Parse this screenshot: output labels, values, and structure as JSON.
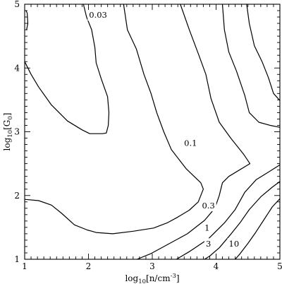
{
  "chart_data": {
    "type": "contour",
    "xlabel": "log10[n/cm^-3]",
    "xlabel_parts": {
      "pre": "log",
      "sub": "10",
      "mid": "[n/cm",
      "sup": "-3",
      "post": "]"
    },
    "ylabel": "log10[G0]",
    "ylabel_parts": {
      "pre": "log",
      "sub": "10",
      "mid": "[G",
      "sub2": "0",
      "post": "]"
    },
    "xlim": [
      1,
      5
    ],
    "ylim": [
      1,
      5
    ],
    "xticks": [
      1,
      2,
      3,
      4,
      5
    ],
    "xtick_labels": [
      "1",
      "2",
      "3",
      "4",
      "5"
    ],
    "yticks": [
      1,
      2,
      3,
      4,
      5
    ],
    "ytick_labels": [
      "1",
      "2",
      "3",
      "4",
      "5"
    ],
    "grid": false,
    "contours": [
      {
        "level": "0.03",
        "label_pos": [
          2.15,
          4.82
        ],
        "paths": [
          [
            [
              1.03,
              4.6
            ],
            [
              1.05,
              4.7
            ],
            [
              1.04,
              4.86
            ],
            [
              1.02,
              4.9
            ]
          ],
          [
            [
              1.0,
              4.1
            ],
            [
              1.1,
              3.9
            ],
            [
              1.22,
              3.7
            ],
            [
              1.42,
              3.42
            ],
            [
              1.67,
              3.17
            ],
            [
              1.9,
              3.03
            ],
            [
              2.02,
              2.97
            ],
            [
              2.22,
              2.97
            ],
            [
              2.28,
              2.98
            ],
            [
              2.31,
              3.1
            ],
            [
              2.32,
              3.3
            ],
            [
              2.3,
              3.55
            ],
            [
              2.2,
              3.83
            ],
            [
              2.12,
              4.08
            ],
            [
              2.1,
              4.32
            ],
            [
              2.05,
              4.6
            ],
            [
              1.97,
              4.8
            ],
            [
              1.92,
              5.0
            ]
          ]
        ]
      },
      {
        "level": "0.1",
        "label_pos": [
          3.6,
          2.81
        ],
        "paths": [
          [
            [
              1.0,
              1.94
            ],
            [
              1.22,
              1.92
            ],
            [
              1.42,
              1.85
            ],
            [
              1.58,
              1.72
            ],
            [
              1.78,
              1.54
            ],
            [
              1.98,
              1.46
            ],
            [
              2.12,
              1.42
            ],
            [
              2.38,
              1.4
            ],
            [
              2.7,
              1.44
            ],
            [
              3.02,
              1.49
            ],
            [
              3.23,
              1.57
            ],
            [
              3.38,
              1.65
            ],
            [
              3.58,
              1.77
            ],
            [
              3.72,
              1.9
            ],
            [
              3.8,
              2.1
            ],
            [
              3.76,
              2.2
            ],
            [
              3.53,
              2.42
            ],
            [
              3.3,
              2.72
            ],
            [
              3.18,
              3.0
            ],
            [
              3.07,
              3.3
            ],
            [
              2.98,
              3.6
            ],
            [
              2.87,
              3.9
            ],
            [
              2.75,
              4.3
            ],
            [
              2.61,
              4.6
            ],
            [
              2.55,
              5.0
            ]
          ]
        ]
      },
      {
        "level": "0.3",
        "label_pos": [
          3.88,
          1.83
        ],
        "paths": [
          [
            [
              3.44,
              5.0
            ],
            [
              3.58,
              4.6
            ],
            [
              3.73,
              4.2
            ],
            [
              3.84,
              3.9
            ],
            [
              3.92,
              3.52
            ],
            [
              4.05,
              3.15
            ],
            [
              4.23,
              2.9
            ],
            [
              4.43,
              2.65
            ],
            [
              4.53,
              2.5
            ],
            [
              4.2,
              2.3
            ],
            [
              4.1,
              2.2
            ],
            [
              4.05,
              2.0
            ],
            [
              3.98,
              1.8
            ],
            [
              3.82,
              1.61
            ],
            [
              3.55,
              1.4
            ],
            [
              3.22,
              1.22
            ],
            [
              2.98,
              1.09
            ],
            [
              2.76,
              1.0
            ]
          ]
        ]
      },
      {
        "level": "1",
        "label_pos": [
          3.86,
          1.48
        ],
        "paths": [
          [
            [
              4.1,
              5.0
            ],
            [
              4.13,
              4.6
            ],
            [
              4.2,
              4.25
            ],
            [
              4.32,
              3.95
            ],
            [
              4.45,
              3.57
            ],
            [
              4.52,
              3.3
            ],
            [
              4.67,
              3.15
            ],
            [
              4.85,
              3.1
            ],
            [
              5.0,
              3.07
            ]
          ],
          [
            [
              5.0,
              2.48
            ],
            [
              4.76,
              2.33
            ],
            [
              4.63,
              2.25
            ],
            [
              4.45,
              2.05
            ],
            [
              4.3,
              1.78
            ],
            [
              4.13,
              1.57
            ],
            [
              3.88,
              1.32
            ],
            [
              3.58,
              1.12
            ],
            [
              3.38,
              1.0
            ]
          ]
        ]
      },
      {
        "level": "3",
        "label_pos": [
          3.88,
          1.23
        ],
        "paths": [
          [
            [
              4.48,
              5.0
            ],
            [
              4.52,
              4.7
            ],
            [
              4.6,
              4.35
            ],
            [
              4.72,
              4.1
            ],
            [
              4.82,
              3.85
            ],
            [
              4.9,
              3.6
            ],
            [
              5.0,
              3.49
            ]
          ],
          [
            [
              5.0,
              2.22
            ],
            [
              4.88,
              2.13
            ],
            [
              4.7,
              1.98
            ],
            [
              4.52,
              1.78
            ],
            [
              4.38,
              1.58
            ],
            [
              4.22,
              1.38
            ],
            [
              4.05,
              1.18
            ],
            [
              3.9,
              1.05
            ],
            [
              3.82,
              1.0
            ]
          ]
        ]
      },
      {
        "level": "10",
        "label_pos": [
          4.28,
          1.23
        ],
        "paths": [
          [
            [
              5.0,
              1.95
            ],
            [
              4.88,
              1.82
            ],
            [
              4.75,
              1.62
            ],
            [
              4.62,
              1.42
            ],
            [
              4.5,
              1.25
            ],
            [
              4.37,
              1.08
            ],
            [
              4.3,
              1.0
            ]
          ]
        ]
      }
    ]
  }
}
